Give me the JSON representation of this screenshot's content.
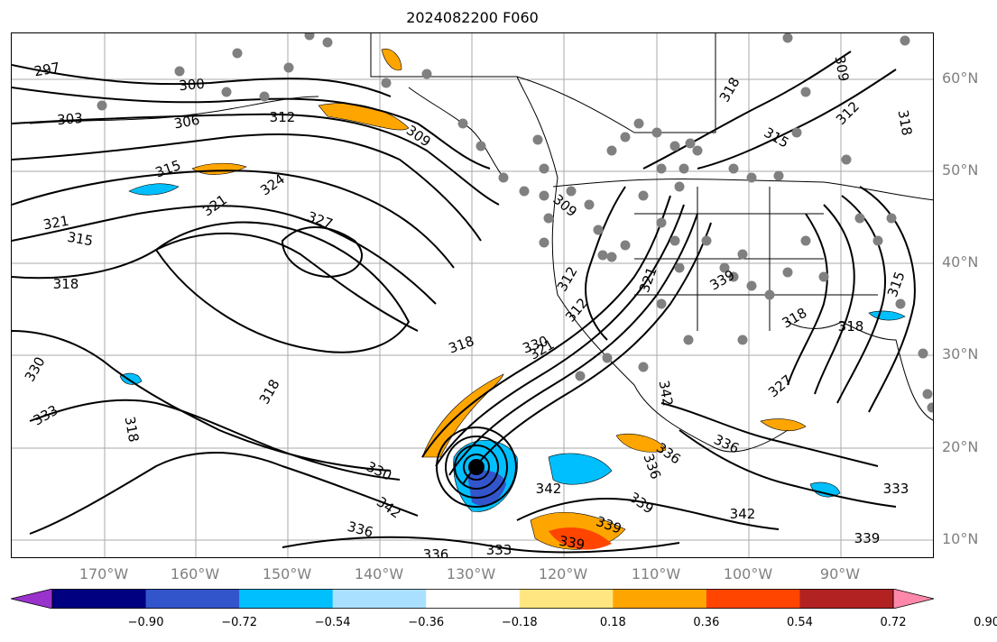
{
  "title": "2024082200 F060",
  "lat_labels": [
    "60°N",
    "50°N",
    "40°N",
    "30°N",
    "20°N",
    "10°N"
  ],
  "lon_labels": [
    "170°W",
    "160°W",
    "150°W",
    "140°W",
    "130°W",
    "120°W",
    "110°W",
    "100°W",
    "90°W"
  ],
  "colorbar": {
    "ticks": [
      "−0.90",
      "−0.72",
      "−0.54",
      "−0.36",
      "−0.18",
      "0.18",
      "0.36",
      "0.54",
      "0.72",
      "0.90"
    ],
    "colors": [
      "#9933cc",
      "#000080",
      "#3355cc",
      "#00bfff",
      "#aae0ff",
      "#ffffff",
      "#ffe680",
      "#ffa500",
      "#ff4500",
      "#b22222",
      "#ff88aa"
    ]
  },
  "contour_labels": [
    "297",
    "300",
    "303",
    "306",
    "312",
    "309",
    "315",
    "321",
    "324",
    "327",
    "315",
    "318",
    "321",
    "330",
    "333",
    "318",
    "318",
    "318",
    "321",
    "330",
    "342",
    "336",
    "342",
    "339",
    "339",
    "336",
    "333",
    "336",
    "342",
    "336",
    "339",
    "318",
    "315",
    "312",
    "309",
    "318",
    "309",
    "312",
    "318",
    "315",
    "321",
    "330",
    "339",
    "327",
    "318",
    "342",
    "336",
    "333",
    "339",
    "312"
  ],
  "colors": {
    "contour": "#000000",
    "station": "#808080",
    "axis_label": "#808080"
  }
}
